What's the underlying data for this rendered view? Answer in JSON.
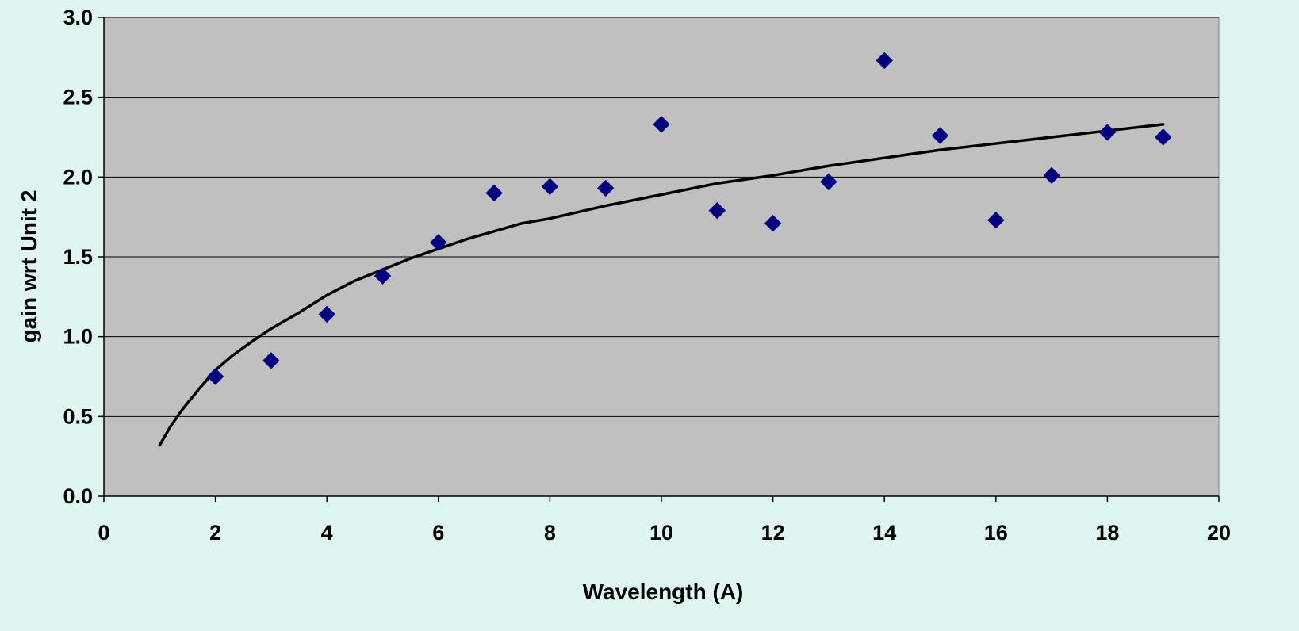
{
  "colors": {
    "page_background": "#dff5f2",
    "plot_background": "#c0c0c0",
    "gridline": "#000000",
    "marker": "#000080",
    "fit_line": "#000000"
  },
  "chart_data": {
    "type": "scatter",
    "title": "",
    "xlabel": "Wavelength (A)",
    "ylabel": "gain wrt Unit 2",
    "xlim": [
      0,
      20
    ],
    "ylim": [
      0.0,
      3.0
    ],
    "x_ticks": [
      0,
      2,
      4,
      6,
      8,
      10,
      12,
      14,
      16,
      18,
      20
    ],
    "x_tick_labels": [
      "0",
      "2",
      "4",
      "6",
      "8",
      "10",
      "12",
      "14",
      "16",
      "18",
      "20"
    ],
    "y_ticks": [
      0.0,
      0.5,
      1.0,
      1.5,
      2.0,
      2.5,
      3.0
    ],
    "y_tick_labels": [
      "0.0",
      "0.5",
      "1.0",
      "1.5",
      "2.0",
      "2.5",
      "3.0"
    ],
    "grid": "horizontal",
    "legend": "none",
    "marker_shape": "diamond",
    "series": [
      {
        "type": "scatter",
        "x": [
          2,
          3,
          4,
          5,
          6,
          7,
          8,
          9,
          10,
          11,
          12,
          13,
          14,
          15,
          16,
          17,
          18,
          19
        ],
        "y": [
          0.75,
          0.85,
          1.14,
          1.38,
          1.59,
          1.9,
          1.94,
          1.93,
          2.33,
          1.79,
          1.71,
          1.97,
          2.73,
          2.26,
          1.73,
          2.01,
          2.28,
          2.25
        ]
      },
      {
        "type": "line",
        "x": [
          1.0,
          1.2,
          1.4,
          1.7,
          2.0,
          2.3,
          2.7,
          3.0,
          3.5,
          4.0,
          4.5,
          5.0,
          5.5,
          6.0,
          6.5,
          7.0,
          7.5,
          8.0,
          9.0,
          10.0,
          11.0,
          12.0,
          13.0,
          14.0,
          15.0,
          16.0,
          17.0,
          18.0,
          19.0
        ],
        "y": [
          0.32,
          0.44,
          0.54,
          0.67,
          0.79,
          0.88,
          0.98,
          1.05,
          1.15,
          1.26,
          1.35,
          1.42,
          1.49,
          1.55,
          1.61,
          1.66,
          1.71,
          1.74,
          1.82,
          1.89,
          1.96,
          2.01,
          2.07,
          2.12,
          2.17,
          2.21,
          2.25,
          2.29,
          2.33
        ]
      }
    ]
  }
}
